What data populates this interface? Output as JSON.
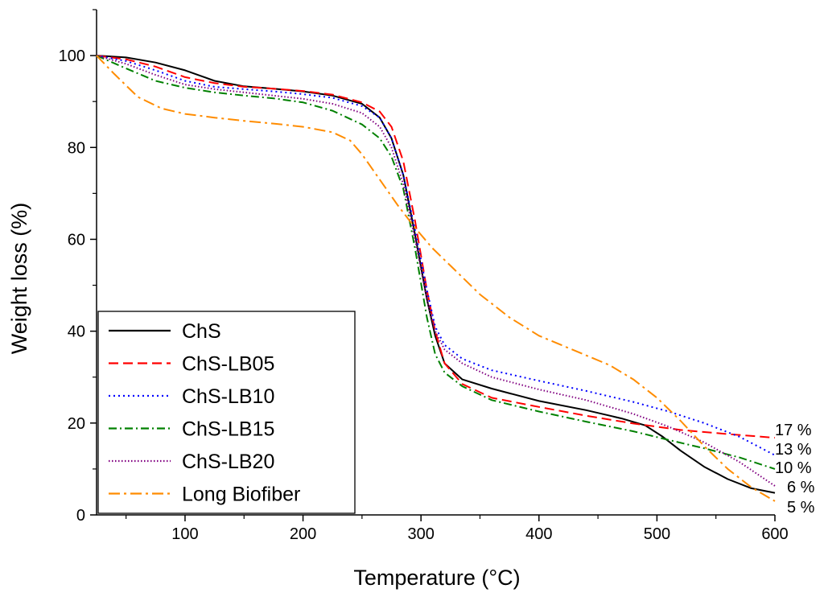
{
  "chart_data": {
    "type": "line",
    "title": "",
    "xlabel": "Temperature (°C)",
    "ylabel": "Weight loss (%)",
    "xlim": [
      25,
      600
    ],
    "ylim": [
      0,
      110
    ],
    "xticks": [
      100,
      200,
      300,
      400,
      500,
      600
    ],
    "yticks": [
      0,
      20,
      40,
      60,
      80,
      100
    ],
    "grid": false,
    "legend_position": "bottom-left",
    "series": [
      {
        "name": "ChS",
        "color": "#000000",
        "dash": "solid",
        "points": [
          [
            25,
            100
          ],
          [
            50,
            99.6
          ],
          [
            75,
            98.5
          ],
          [
            100,
            96.8
          ],
          [
            125,
            94.5
          ],
          [
            150,
            93.3
          ],
          [
            175,
            92.8
          ],
          [
            200,
            92.2
          ],
          [
            225,
            91.3
          ],
          [
            250,
            89.5
          ],
          [
            265,
            86.5
          ],
          [
            275,
            82
          ],
          [
            285,
            74
          ],
          [
            295,
            61
          ],
          [
            305,
            47
          ],
          [
            312,
            39
          ],
          [
            320,
            33
          ],
          [
            335,
            29.5
          ],
          [
            360,
            27.5
          ],
          [
            400,
            24.8
          ],
          [
            440,
            22.8
          ],
          [
            470,
            21
          ],
          [
            490,
            19.5
          ],
          [
            505,
            17
          ],
          [
            520,
            14
          ],
          [
            540,
            10.5
          ],
          [
            560,
            7.8
          ],
          [
            580,
            5.8
          ],
          [
            600,
            4.8
          ]
        ]
      },
      {
        "name": "ChS-LB05",
        "color": "#ff0000",
        "dash": "dashed",
        "points": [
          [
            25,
            100
          ],
          [
            50,
            99.2
          ],
          [
            75,
            97.6
          ],
          [
            100,
            95.3
          ],
          [
            125,
            94
          ],
          [
            150,
            93.2
          ],
          [
            175,
            92.8
          ],
          [
            200,
            92.3
          ],
          [
            225,
            91.5
          ],
          [
            250,
            89.8
          ],
          [
            265,
            87.8
          ],
          [
            275,
            84.5
          ],
          [
            285,
            77
          ],
          [
            295,
            64
          ],
          [
            305,
            49
          ],
          [
            312,
            40
          ],
          [
            320,
            33
          ],
          [
            335,
            28.5
          ],
          [
            360,
            25.5
          ],
          [
            400,
            23.5
          ],
          [
            440,
            21.6
          ],
          [
            480,
            19.9
          ],
          [
            520,
            18.5
          ],
          [
            560,
            17.6
          ],
          [
            600,
            16.8
          ]
        ]
      },
      {
        "name": "ChS-LB10",
        "color": "#0000ff",
        "dash": "dotted",
        "points": [
          [
            25,
            100
          ],
          [
            50,
            98.8
          ],
          [
            75,
            96.8
          ],
          [
            100,
            94.5
          ],
          [
            125,
            93.2
          ],
          [
            150,
            92.7
          ],
          [
            175,
            92.2
          ],
          [
            200,
            91.6
          ],
          [
            225,
            90.8
          ],
          [
            250,
            89
          ],
          [
            265,
            86.5
          ],
          [
            275,
            82
          ],
          [
            285,
            74
          ],
          [
            295,
            62
          ],
          [
            305,
            49
          ],
          [
            312,
            41
          ],
          [
            320,
            37
          ],
          [
            335,
            34
          ],
          [
            360,
            31.5
          ],
          [
            400,
            29.2
          ],
          [
            440,
            27
          ],
          [
            480,
            24.6
          ],
          [
            510,
            22.5
          ],
          [
            540,
            20
          ],
          [
            570,
            17
          ],
          [
            600,
            13
          ]
        ]
      },
      {
        "name": "ChS-LB15",
        "color": "#008000",
        "dash": "dashdot",
        "points": [
          [
            25,
            100
          ],
          [
            50,
            97.2
          ],
          [
            75,
            94.5
          ],
          [
            100,
            93
          ],
          [
            125,
            92
          ],
          [
            150,
            91.3
          ],
          [
            175,
            90.7
          ],
          [
            200,
            89.8
          ],
          [
            225,
            88
          ],
          [
            250,
            85
          ],
          [
            265,
            82
          ],
          [
            275,
            78
          ],
          [
            285,
            71
          ],
          [
            295,
            58
          ],
          [
            305,
            43
          ],
          [
            312,
            35
          ],
          [
            320,
            31
          ],
          [
            335,
            28
          ],
          [
            360,
            25
          ],
          [
            400,
            22.5
          ],
          [
            440,
            20.3
          ],
          [
            480,
            18.2
          ],
          [
            510,
            16.3
          ],
          [
            540,
            14.5
          ],
          [
            570,
            12.5
          ],
          [
            600,
            10
          ]
        ]
      },
      {
        "name": "ChS-LB20",
        "color": "#800080",
        "dash": "densedot",
        "points": [
          [
            25,
            100
          ],
          [
            50,
            98.2
          ],
          [
            75,
            95.8
          ],
          [
            100,
            93.7
          ],
          [
            125,
            92.7
          ],
          [
            150,
            92
          ],
          [
            175,
            91.3
          ],
          [
            200,
            90.6
          ],
          [
            225,
            89.5
          ],
          [
            250,
            87.5
          ],
          [
            265,
            84.5
          ],
          [
            275,
            80
          ],
          [
            285,
            72
          ],
          [
            295,
            60
          ],
          [
            305,
            47
          ],
          [
            312,
            40
          ],
          [
            320,
            36
          ],
          [
            335,
            33
          ],
          [
            360,
            30
          ],
          [
            400,
            27.3
          ],
          [
            440,
            25
          ],
          [
            480,
            22
          ],
          [
            510,
            19.2
          ],
          [
            540,
            15.8
          ],
          [
            570,
            11.5
          ],
          [
            600,
            6.3
          ]
        ]
      },
      {
        "name": "Long Biofiber",
        "color": "#ff8c00",
        "dash": "longdashdot",
        "points": [
          [
            25,
            100
          ],
          [
            40,
            96
          ],
          [
            60,
            91
          ],
          [
            80,
            88.5
          ],
          [
            100,
            87.3
          ],
          [
            125,
            86.5
          ],
          [
            150,
            85.8
          ],
          [
            175,
            85.2
          ],
          [
            200,
            84.5
          ],
          [
            225,
            83.3
          ],
          [
            240,
            81.5
          ],
          [
            250,
            78.5
          ],
          [
            265,
            73
          ],
          [
            280,
            67.5
          ],
          [
            295,
            62.5
          ],
          [
            310,
            58
          ],
          [
            330,
            53
          ],
          [
            350,
            48
          ],
          [
            375,
            43
          ],
          [
            400,
            39
          ],
          [
            430,
            35.8
          ],
          [
            460,
            32.6
          ],
          [
            480,
            29.5
          ],
          [
            500,
            25.5
          ],
          [
            520,
            20.5
          ],
          [
            540,
            15
          ],
          [
            560,
            10
          ],
          [
            580,
            6
          ],
          [
            600,
            3
          ]
        ]
      }
    ],
    "end_labels": [
      "17 %",
      "13 %",
      "10 %",
      "6 %",
      "5 %"
    ]
  }
}
